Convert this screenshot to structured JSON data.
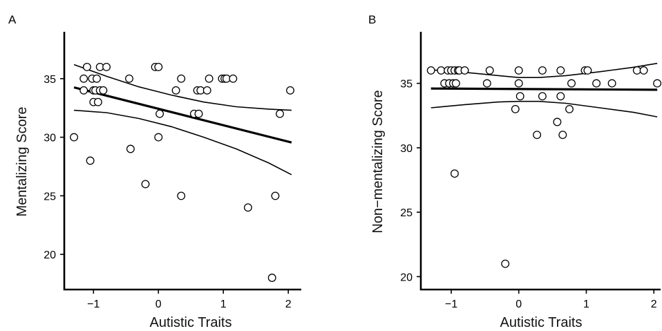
{
  "chart_data": [
    {
      "panel": "A",
      "type": "scatter",
      "xlabel": "Autistic Traits",
      "ylabel": "Mentalizing Score",
      "xlim": [
        -1.45,
        2.2
      ],
      "ylim": [
        17.0,
        39.0
      ],
      "xticks": [
        -1,
        0,
        1,
        2
      ],
      "yticks": [
        20,
        25,
        30,
        35
      ],
      "points": [
        {
          "x": -1.3,
          "y": 30
        },
        {
          "x": -1.15,
          "y": 34
        },
        {
          "x": -1.15,
          "y": 35
        },
        {
          "x": -1.1,
          "y": 36
        },
        {
          "x": -1.05,
          "y": 28
        },
        {
          "x": -1.02,
          "y": 35
        },
        {
          "x": -1.0,
          "y": 34
        },
        {
          "x": -1.0,
          "y": 33
        },
        {
          "x": -0.97,
          "y": 34
        },
        {
          "x": -0.95,
          "y": 35
        },
        {
          "x": -0.93,
          "y": 33
        },
        {
          "x": -0.9,
          "y": 34
        },
        {
          "x": -0.9,
          "y": 36
        },
        {
          "x": -0.85,
          "y": 34
        },
        {
          "x": -0.8,
          "y": 36
        },
        {
          "x": -0.45,
          "y": 35
        },
        {
          "x": -0.43,
          "y": 29
        },
        {
          "x": -0.2,
          "y": 26
        },
        {
          "x": -0.05,
          "y": 36
        },
        {
          "x": 0.0,
          "y": 36
        },
        {
          "x": 0.0,
          "y": 30
        },
        {
          "x": 0.02,
          "y": 32
        },
        {
          "x": 0.27,
          "y": 34
        },
        {
          "x": 0.35,
          "y": 35
        },
        {
          "x": 0.35,
          "y": 25
        },
        {
          "x": 0.55,
          "y": 32
        },
        {
          "x": 0.6,
          "y": 34
        },
        {
          "x": 0.62,
          "y": 32
        },
        {
          "x": 0.65,
          "y": 34
        },
        {
          "x": 0.75,
          "y": 34
        },
        {
          "x": 0.78,
          "y": 35
        },
        {
          "x": 0.98,
          "y": 35
        },
        {
          "x": 1.02,
          "y": 35
        },
        {
          "x": 1.05,
          "y": 35
        },
        {
          "x": 1.15,
          "y": 35
        },
        {
          "x": 1.38,
          "y": 24
        },
        {
          "x": 1.75,
          "y": 18
        },
        {
          "x": 1.8,
          "y": 25
        },
        {
          "x": 1.87,
          "y": 32
        },
        {
          "x": 2.03,
          "y": 34
        }
      ],
      "fit_line": {
        "x": [
          -1.3,
          2.05
        ],
        "y": [
          34.25,
          29.55
        ]
      },
      "ci_upper": {
        "x": [
          -1.3,
          -0.8,
          -0.3,
          0.2,
          0.7,
          1.2,
          1.7,
          2.05
        ],
        "y": [
          36.2,
          35.2,
          34.3,
          33.6,
          33.0,
          32.6,
          32.4,
          32.3
        ]
      },
      "ci_lower": {
        "x": [
          -1.3,
          -0.8,
          -0.3,
          0.2,
          0.7,
          1.2,
          1.7,
          2.05
        ],
        "y": [
          32.3,
          32.1,
          31.6,
          30.9,
          30.0,
          29.0,
          27.8,
          26.8
        ]
      }
    },
    {
      "panel": "B",
      "type": "scatter",
      "xlabel": "Autistic Traits",
      "ylabel": "Non−mentalizing Score",
      "xlim": [
        -1.45,
        2.1
      ],
      "ylim": [
        19.0,
        39.0
      ],
      "xticks": [
        -1,
        0,
        1,
        2
      ],
      "yticks": [
        20,
        25,
        30,
        35
      ],
      "points": [
        {
          "x": -1.3,
          "y": 36
        },
        {
          "x": -1.15,
          "y": 36
        },
        {
          "x": -1.1,
          "y": 35
        },
        {
          "x": -1.05,
          "y": 36
        },
        {
          "x": -1.03,
          "y": 35
        },
        {
          "x": -1.0,
          "y": 36
        },
        {
          "x": -0.97,
          "y": 35
        },
        {
          "x": -0.95,
          "y": 36
        },
        {
          "x": -0.95,
          "y": 28
        },
        {
          "x": -0.93,
          "y": 35
        },
        {
          "x": -0.9,
          "y": 36
        },
        {
          "x": -0.88,
          "y": 36
        },
        {
          "x": -0.8,
          "y": 36
        },
        {
          "x": -0.47,
          "y": 35
        },
        {
          "x": -0.43,
          "y": 36
        },
        {
          "x": -0.2,
          "y": 21
        },
        {
          "x": -0.05,
          "y": 33
        },
        {
          "x": 0.0,
          "y": 36
        },
        {
          "x": 0.0,
          "y": 35
        },
        {
          "x": 0.02,
          "y": 34
        },
        {
          "x": 0.27,
          "y": 31
        },
        {
          "x": 0.35,
          "y": 36
        },
        {
          "x": 0.35,
          "y": 34
        },
        {
          "x": 0.57,
          "y": 32
        },
        {
          "x": 0.62,
          "y": 36
        },
        {
          "x": 0.62,
          "y": 34
        },
        {
          "x": 0.65,
          "y": 31
        },
        {
          "x": 0.75,
          "y": 33
        },
        {
          "x": 0.78,
          "y": 35
        },
        {
          "x": 0.98,
          "y": 36
        },
        {
          "x": 1.02,
          "y": 36
        },
        {
          "x": 1.15,
          "y": 35
        },
        {
          "x": 1.38,
          "y": 35
        },
        {
          "x": 1.75,
          "y": 36
        },
        {
          "x": 1.85,
          "y": 36
        },
        {
          "x": 2.05,
          "y": 35
        }
      ],
      "fit_line": {
        "x": [
          -1.3,
          2.05
        ],
        "y": [
          34.6,
          34.5
        ]
      },
      "ci_upper": {
        "x": [
          -1.3,
          -0.8,
          -0.3,
          0.0,
          0.3,
          0.7,
          1.2,
          1.7,
          2.05
        ],
        "y": [
          36.05,
          35.85,
          35.6,
          35.45,
          35.45,
          35.6,
          35.9,
          36.25,
          36.55
        ]
      },
      "ci_lower": {
        "x": [
          -1.3,
          -0.8,
          -0.3,
          0.0,
          0.3,
          0.7,
          1.2,
          1.7,
          2.05
        ],
        "y": [
          33.1,
          33.35,
          33.55,
          33.6,
          33.6,
          33.45,
          33.1,
          32.75,
          32.4
        ]
      }
    }
  ]
}
